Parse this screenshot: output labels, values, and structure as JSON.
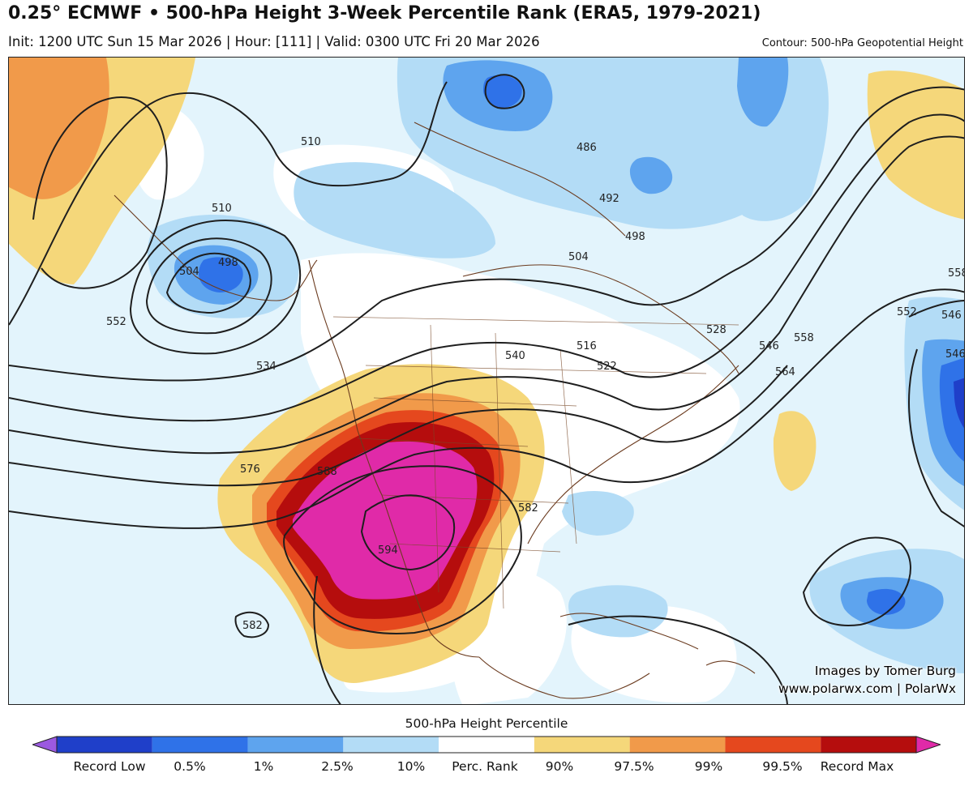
{
  "header": {
    "title": "0.25° ECMWF • 500-hPa Height 3-Week Percentile Rank (ERA5, 1979-2021)",
    "subtitle": "Init: 1200 UTC Sun 15 Mar 2026 | Hour: [111] | Valid: 0300 UTC Fri 20 Mar 2026",
    "contour_label": "Contour: 500-hPa Geopotential Height"
  },
  "map": {
    "contour_labels": [
      "510",
      "510",
      "486",
      "498",
      "504",
      "552",
      "534",
      "540",
      "516",
      "522",
      "528",
      "546",
      "558",
      "564",
      "552",
      "546",
      "558",
      "576",
      "588",
      "594",
      "582",
      "582",
      "504",
      "498",
      "492",
      "546"
    ],
    "credit_line1": "Images by Tomer Burg",
    "credit_line2": "www.polarwx.com | PolarWx"
  },
  "colorbar": {
    "title": "500-hPa Height Percentile",
    "labels": [
      "Record Low",
      "0.5%",
      "1%",
      "2.5%",
      "10%",
      "Perc. Rank",
      "90%",
      "97.5%",
      "99%",
      "99.5%",
      "Record Max"
    ],
    "colors": [
      "#9b59e0",
      "#1f3fc9",
      "#2f72e8",
      "#5ea4ee",
      "#b3dcf6",
      "#ffffff",
      "#f5d77a",
      "#f19a4a",
      "#e5481e",
      "#b50d0d",
      "#e02aa8"
    ]
  }
}
